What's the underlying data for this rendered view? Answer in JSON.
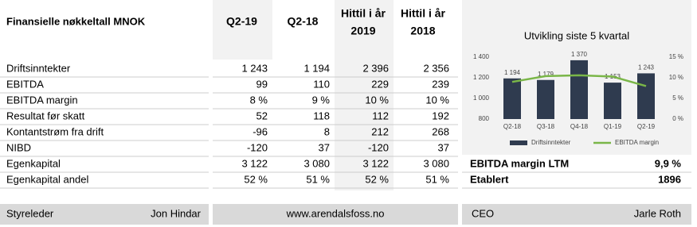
{
  "table": {
    "title": "Finansielle nøkkeltall MNOK",
    "columns": [
      [
        "Q2-19"
      ],
      [
        "Q2-18"
      ],
      [
        "Hittil i år",
        "2019"
      ],
      [
        "Hittil i år",
        "2018"
      ]
    ],
    "rows": [
      [
        "Driftsinntekter",
        "1 243",
        "1 194",
        "2 396",
        "2 356"
      ],
      [
        "EBITDA",
        "99",
        "110",
        "229",
        "239"
      ],
      [
        "EBITDA margin",
        "8 %",
        "9 %",
        "10 %",
        "10 %"
      ],
      [
        "Resultat før skatt",
        "52",
        "118",
        "112",
        "192"
      ],
      [
        "Kontantstrøm fra drift",
        "-96",
        "8",
        "212",
        "268"
      ],
      [
        "NIBD",
        "-120",
        "37",
        "-120",
        "37"
      ],
      [
        "Egenkapital",
        "3 122",
        "3 080",
        "3 122",
        "3 080"
      ],
      [
        "Egenkapital andel",
        "52 %",
        "51 %",
        "52 %",
        "51 %"
      ]
    ]
  },
  "chart_data": {
    "type": "bar",
    "title": "Utvikling siste 5 kvartal",
    "categories": [
      "Q2-18",
      "Q3-18",
      "Q4-18",
      "Q1-19",
      "Q2-19"
    ],
    "series": [
      {
        "name": "Driftsinntekter",
        "type": "bar",
        "color": "#2f3b4f",
        "values": [
          1194,
          1179,
          1370,
          1153,
          1243
        ],
        "value_labels": [
          "1 194",
          "1 179",
          "1 370",
          "1 153",
          "1 243"
        ]
      },
      {
        "name": "EBITDA margin",
        "type": "line",
        "axis": "y2",
        "color": "#7ab648",
        "values": [
          9,
          10.4,
          10.6,
          10.3,
          8
        ]
      }
    ],
    "ylim": [
      800,
      1400
    ],
    "yticks": [
      800,
      {
        "value": 1000,
        "label": "1 000"
      },
      {
        "value": 1200,
        "label": "1 200"
      },
      {
        "value": 1400,
        "label": "1 400"
      }
    ],
    "y2lim": [
      0,
      15
    ],
    "y2ticks": [
      {
        "value": 0,
        "label": "0 %"
      },
      {
        "value": 5,
        "label": "5 %"
      },
      {
        "value": 10,
        "label": "10 %"
      },
      {
        "value": 15,
        "label": "15 %"
      }
    ],
    "legend": "bottom"
  },
  "side": [
    [
      "EBITDA margin LTM",
      "9,9 %"
    ],
    [
      "Etablert",
      "1896"
    ]
  ],
  "footer": {
    "left": [
      "Styreleder",
      "Jon Hindar"
    ],
    "center": "www.arendalsfoss.no",
    "right": [
      "CEO",
      "Jarle Roth"
    ]
  }
}
